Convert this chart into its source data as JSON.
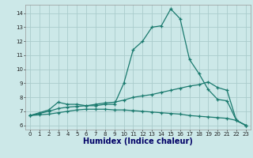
{
  "bg_color": "#cce8e8",
  "grid_color": "#aacccc",
  "line_color": "#1a7a6e",
  "xlabel": "Humidex (Indice chaleur)",
  "xlabel_fontsize": 7,
  "x_ticks": [
    0,
    1,
    2,
    3,
    4,
    5,
    6,
    7,
    8,
    9,
    10,
    11,
    12,
    13,
    14,
    15,
    16,
    17,
    18,
    19,
    20,
    21,
    22,
    23
  ],
  "xlim": [
    -0.5,
    23.5
  ],
  "ylim": [
    5.7,
    14.6
  ],
  "y_ticks": [
    6,
    7,
    8,
    9,
    10,
    11,
    12,
    13,
    14
  ],
  "line1_x": [
    0,
    1,
    2,
    3,
    4,
    5,
    6,
    7,
    8,
    9,
    10,
    11,
    12,
    13,
    14,
    15,
    16,
    17,
    18,
    19,
    20,
    21,
    22,
    23
  ],
  "line1_y": [
    6.7,
    6.9,
    7.1,
    7.65,
    7.5,
    7.5,
    7.4,
    7.4,
    7.5,
    7.5,
    9.0,
    11.4,
    12.0,
    13.0,
    13.1,
    14.3,
    13.6,
    10.7,
    9.7,
    8.55,
    7.85,
    7.75,
    6.35,
    6.0
  ],
  "line2_x": [
    0,
    1,
    2,
    3,
    4,
    5,
    6,
    7,
    8,
    9,
    10,
    11,
    12,
    13,
    14,
    15,
    16,
    17,
    18,
    19,
    20,
    21,
    22,
    23
  ],
  "line2_y": [
    6.7,
    6.85,
    7.0,
    7.2,
    7.3,
    7.35,
    7.4,
    7.5,
    7.6,
    7.65,
    7.8,
    8.0,
    8.1,
    8.2,
    8.35,
    8.5,
    8.65,
    8.8,
    8.9,
    9.1,
    8.7,
    8.5,
    6.35,
    6.0
  ],
  "line3_x": [
    0,
    1,
    2,
    3,
    4,
    5,
    6,
    7,
    8,
    9,
    10,
    11,
    12,
    13,
    14,
    15,
    16,
    17,
    18,
    19,
    20,
    21,
    22,
    23
  ],
  "line3_y": [
    6.7,
    6.75,
    6.8,
    6.9,
    7.0,
    7.1,
    7.15,
    7.15,
    7.15,
    7.1,
    7.1,
    7.05,
    7.0,
    6.95,
    6.9,
    6.85,
    6.8,
    6.7,
    6.65,
    6.6,
    6.55,
    6.5,
    6.35,
    6.0
  ]
}
